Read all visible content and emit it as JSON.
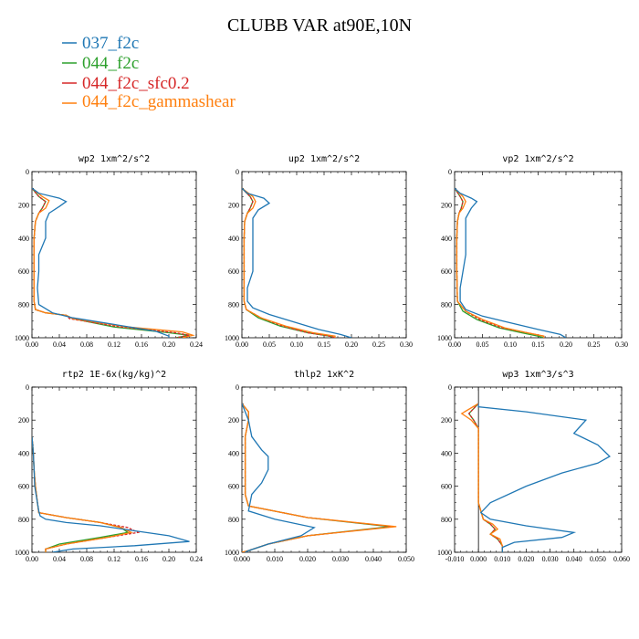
{
  "title": "CLUBB VAR at90E,10N",
  "colors": {
    "037_f2c": "#1f77b4",
    "044_f2c": "#2ca02c",
    "044_f2c_sfc0.2": "#d62728",
    "044_f2c_gammashear": "#ff7f0e"
  },
  "legend": [
    "037_f2c",
    "044_f2c",
    "044_f2c_sfc0.2",
    "044_f2c_gammashear"
  ],
  "chart_data": [
    {
      "type": "line",
      "title": "wp2  1xm^2/s^2",
      "xlim": [
        0,
        0.24
      ],
      "ylim": [
        1000,
        0
      ],
      "xticks": [
        "0.00",
        "0.04",
        "0.08",
        "0.12",
        "0.16",
        "0.20",
        "0.24"
      ],
      "yticks": [
        "0",
        "200",
        "400",
        "600",
        "800",
        "1000"
      ],
      "series": [
        {
          "name": "037_f2c",
          "x": [
            0.0,
            0.01,
            0.04,
            0.05,
            0.04,
            0.025,
            0.02,
            0.02,
            0.01,
            0.01,
            0.008,
            0.01,
            0.03,
            0.06,
            0.12,
            0.18,
            0.2,
            0.2
          ],
          "y": [
            100,
            130,
            160,
            180,
            210,
            250,
            300,
            400,
            500,
            600,
            700,
            800,
            850,
            880,
            920,
            960,
            990,
            1000
          ]
        },
        {
          "name": "044_f2c",
          "x": [
            0.0,
            0.01,
            0.02,
            0.015,
            0.01,
            0.005,
            0.003,
            0.003,
            0.003,
            0.005,
            0.02,
            0.05,
            0.06,
            0.12,
            0.2,
            0.23,
            0.21
          ],
          "y": [
            100,
            150,
            180,
            220,
            250,
            300,
            400,
            600,
            780,
            830,
            850,
            865,
            885,
            935,
            970,
            985,
            1000
          ]
        },
        {
          "name": "044_f2c_sfc0.2",
          "x": [
            0.0,
            0.01,
            0.02,
            0.015,
            0.01,
            0.005,
            0.003,
            0.003,
            0.003,
            0.005,
            0.02,
            0.05,
            0.055,
            0.13,
            0.21,
            0.23,
            0.21
          ],
          "y": [
            100,
            150,
            180,
            220,
            250,
            300,
            400,
            600,
            780,
            830,
            850,
            865,
            885,
            935,
            970,
            985,
            1000
          ]
        },
        {
          "name": "044_f2c_gammashear",
          "x": [
            0.0,
            0.015,
            0.025,
            0.02,
            0.01,
            0.005,
            0.003,
            0.003,
            0.003,
            0.005,
            0.02,
            0.05,
            0.06,
            0.14,
            0.22,
            0.235,
            0.22
          ],
          "y": [
            100,
            150,
            175,
            220,
            250,
            300,
            400,
            600,
            780,
            830,
            850,
            865,
            885,
            935,
            965,
            985,
            1000
          ]
        }
      ]
    },
    {
      "type": "line",
      "title": "up2  1xm^2/s^2",
      "xlim": [
        0,
        0.3
      ],
      "ylim": [
        1000,
        0
      ],
      "xticks": [
        "0.00",
        "0.05",
        "0.10",
        "0.15",
        "0.20",
        "0.25",
        "0.30"
      ],
      "yticks": [
        "0",
        "200",
        "400",
        "600",
        "800",
        "1000"
      ],
      "series": [
        {
          "name": "037_f2c",
          "x": [
            0.0,
            0.01,
            0.04,
            0.05,
            0.03,
            0.02,
            0.02,
            0.02,
            0.01,
            0.01,
            0.02,
            0.05,
            0.1,
            0.14,
            0.18,
            0.2
          ],
          "y": [
            100,
            130,
            160,
            190,
            230,
            280,
            400,
            600,
            700,
            780,
            820,
            860,
            910,
            950,
            980,
            1000
          ]
        },
        {
          "name": "044_f2c",
          "x": [
            0.0,
            0.015,
            0.02,
            0.015,
            0.01,
            0.005,
            0.004,
            0.004,
            0.004,
            0.008,
            0.03,
            0.07,
            0.12,
            0.16,
            0.17
          ],
          "y": [
            100,
            150,
            180,
            220,
            250,
            300,
            400,
            600,
            780,
            830,
            880,
            930,
            970,
            990,
            1000
          ]
        },
        {
          "name": "044_f2c_sfc0.2",
          "x": [
            0.0,
            0.015,
            0.02,
            0.015,
            0.01,
            0.005,
            0.004,
            0.004,
            0.004,
            0.008,
            0.035,
            0.075,
            0.12,
            0.16,
            0.17
          ],
          "y": [
            100,
            150,
            180,
            220,
            250,
            300,
            400,
            600,
            780,
            830,
            880,
            930,
            970,
            990,
            1000
          ]
        },
        {
          "name": "044_f2c_gammashear",
          "x": [
            0.0,
            0.02,
            0.025,
            0.02,
            0.01,
            0.005,
            0.004,
            0.004,
            0.004,
            0.008,
            0.035,
            0.08,
            0.13,
            0.17,
            0.17
          ],
          "y": [
            100,
            150,
            180,
            220,
            250,
            300,
            400,
            600,
            780,
            830,
            880,
            930,
            970,
            990,
            1000
          ]
        }
      ]
    },
    {
      "type": "line",
      "title": "vp2  1xm^2/s^2",
      "xlim": [
        0,
        0.3
      ],
      "ylim": [
        1000,
        0
      ],
      "xticks": [
        "0.00",
        "0.05",
        "0.10",
        "0.15",
        "0.20",
        "0.25",
        "0.30"
      ],
      "yticks": [
        "0",
        "200",
        "400",
        "600",
        "800",
        "1000"
      ],
      "series": [
        {
          "name": "037_f2c",
          "x": [
            0.0,
            0.01,
            0.03,
            0.04,
            0.03,
            0.02,
            0.02,
            0.01,
            0.01,
            0.02,
            0.05,
            0.1,
            0.15,
            0.19,
            0.2
          ],
          "y": [
            100,
            130,
            160,
            180,
            220,
            280,
            500,
            700,
            780,
            830,
            870,
            910,
            950,
            980,
            1000
          ]
        },
        {
          "name": "044_f2c",
          "x": [
            0.0,
            0.01,
            0.015,
            0.012,
            0.008,
            0.005,
            0.004,
            0.004,
            0.005,
            0.015,
            0.04,
            0.08,
            0.12,
            0.15,
            0.16
          ],
          "y": [
            100,
            150,
            180,
            220,
            250,
            300,
            400,
            600,
            780,
            840,
            890,
            940,
            970,
            990,
            1000
          ]
        },
        {
          "name": "044_f2c_sfc0.2",
          "x": [
            0.0,
            0.01,
            0.015,
            0.012,
            0.008,
            0.005,
            0.004,
            0.004,
            0.005,
            0.02,
            0.045,
            0.085,
            0.13,
            0.16,
            0.16
          ],
          "y": [
            100,
            150,
            180,
            220,
            250,
            300,
            400,
            600,
            780,
            840,
            890,
            940,
            970,
            990,
            1000
          ]
        },
        {
          "name": "044_f2c_gammashear",
          "x": [
            0.0,
            0.015,
            0.02,
            0.015,
            0.008,
            0.005,
            0.004,
            0.004,
            0.005,
            0.02,
            0.05,
            0.09,
            0.13,
            0.16,
            0.16
          ],
          "y": [
            100,
            150,
            180,
            220,
            250,
            300,
            400,
            600,
            780,
            840,
            890,
            940,
            970,
            990,
            1000
          ]
        }
      ]
    },
    {
      "type": "line",
      "title": "rtp2  1E-6x(kg/kg)^2",
      "xlim": [
        0,
        0.24
      ],
      "ylim": [
        1000,
        0
      ],
      "xticks": [
        "0.00",
        "0.04",
        "0.08",
        "0.12",
        "0.16",
        "0.20",
        "0.24"
      ],
      "yticks": [
        "0",
        "200",
        "400",
        "600",
        "800",
        "1000"
      ],
      "series": [
        {
          "name": "037_f2c",
          "x": [
            0.0,
            0.002,
            0.003,
            0.004,
            0.008,
            0.01,
            0.012,
            0.02,
            0.05,
            0.1,
            0.15,
            0.2,
            0.23,
            0.15,
            0.06,
            0.03
          ],
          "y": [
            300,
            400,
            500,
            600,
            700,
            750,
            780,
            800,
            820,
            840,
            870,
            900,
            935,
            960,
            980,
            1000
          ]
        },
        {
          "name": "044_f2c",
          "x": [
            0.0,
            0.002,
            0.003,
            0.005,
            0.008,
            0.01,
            0.05,
            0.1,
            0.13,
            0.14,
            0.1,
            0.04,
            0.02,
            0.02
          ],
          "y": [
            300,
            400,
            500,
            600,
            700,
            760,
            790,
            820,
            850,
            880,
            910,
            950,
            980,
            1000
          ]
        },
        {
          "name": "044_f2c_sfc0.2",
          "x": [
            0.0,
            0.002,
            0.003,
            0.005,
            0.008,
            0.01,
            0.05,
            0.1,
            0.14,
            0.155,
            0.11,
            0.05,
            0.02,
            0.02
          ],
          "y": [
            300,
            400,
            500,
            600,
            700,
            760,
            790,
            820,
            850,
            880,
            910,
            950,
            980,
            1000
          ]
        },
        {
          "name": "044_f2c_gammashear",
          "x": [
            0.0,
            0.002,
            0.003,
            0.005,
            0.008,
            0.01,
            0.05,
            0.1,
            0.13,
            0.145,
            0.11,
            0.05,
            0.02,
            0.02
          ],
          "y": [
            300,
            400,
            500,
            600,
            700,
            760,
            790,
            820,
            850,
            880,
            910,
            950,
            980,
            1000
          ]
        }
      ]
    },
    {
      "type": "line",
      "title": "thlp2  1xK^2",
      "xlim": [
        0,
        0.05
      ],
      "ylim": [
        1000,
        0
      ],
      "xticks": [
        "0.000",
        "0.010",
        "0.020",
        "0.030",
        "0.040",
        "0.050"
      ],
      "yticks": [
        "0",
        "200",
        "400",
        "600",
        "800",
        "1000"
      ],
      "series": [
        {
          "name": "037_f2c",
          "x": [
            0.0,
            0.002,
            0.003,
            0.006,
            0.008,
            0.008,
            0.006,
            0.003,
            0.002,
            0.01,
            0.022,
            0.018,
            0.008,
            0.002,
            0.001
          ],
          "y": [
            100,
            200,
            300,
            380,
            420,
            500,
            580,
            650,
            750,
            800,
            850,
            900,
            950,
            990,
            1000
          ]
        },
        {
          "name": "044_f2c",
          "x": [
            0.0,
            0.002,
            0.002,
            0.001,
            0.001,
            0.001,
            0.002,
            0.02,
            0.045,
            0.02,
            0.008,
            0.002,
            0.0
          ],
          "y": [
            100,
            150,
            200,
            300,
            500,
            650,
            720,
            790,
            845,
            900,
            950,
            990,
            1000
          ]
        },
        {
          "name": "044_f2c_sfc0.2",
          "x": [
            0.0,
            0.002,
            0.002,
            0.001,
            0.001,
            0.001,
            0.002,
            0.02,
            0.046,
            0.02,
            0.008,
            0.002,
            0.0
          ],
          "y": [
            100,
            150,
            200,
            300,
            500,
            650,
            720,
            790,
            845,
            900,
            950,
            990,
            1000
          ]
        },
        {
          "name": "044_f2c_gammashear",
          "x": [
            0.0,
            0.002,
            0.002,
            0.001,
            0.001,
            0.001,
            0.002,
            0.02,
            0.047,
            0.02,
            0.008,
            0.002,
            0.0
          ],
          "y": [
            100,
            150,
            200,
            300,
            500,
            650,
            720,
            790,
            845,
            900,
            950,
            990,
            1000
          ]
        }
      ]
    },
    {
      "type": "line",
      "title": "wp3  1xm^3/s^3",
      "xlim": [
        -0.01,
        0.06
      ],
      "ylim": [
        1000,
        0
      ],
      "xticks": [
        "-0.010",
        "0.000",
        "0.010",
        "0.020",
        "0.030",
        "0.040",
        "0.050",
        "0.060"
      ],
      "yticks": [
        "0",
        "200",
        "400",
        "600",
        "800",
        "1000"
      ],
      "series": [
        {
          "name": "037_f2c",
          "x": [
            0.0,
            0.0,
            0.02,
            0.045,
            0.04,
            0.05,
            0.055,
            0.05,
            0.035,
            0.02,
            0.005,
            0.001,
            0.005,
            0.02,
            0.04,
            0.035,
            0.015,
            0.01,
            0.01
          ],
          "y": [
            100,
            120,
            150,
            200,
            280,
            350,
            420,
            460,
            520,
            600,
            700,
            760,
            800,
            840,
            880,
            910,
            940,
            970,
            1000
          ]
        },
        {
          "name": "044_f2c",
          "x": [
            0.0,
            -0.004,
            -0.002,
            0.0,
            0.0,
            0.0,
            0.0,
            0.002,
            0.005,
            0.007,
            0.005,
            0.008,
            0.01,
            0.01
          ],
          "y": [
            100,
            160,
            200,
            250,
            300,
            500,
            700,
            800,
            830,
            860,
            890,
            920,
            960,
            1000
          ]
        },
        {
          "name": "044_f2c_sfc0.2",
          "x": [
            0.0,
            -0.004,
            -0.002,
            0.0,
            0.0,
            0.0,
            0.0,
            0.002,
            0.005,
            0.007,
            0.005,
            0.008,
            0.01,
            0.01
          ],
          "y": [
            100,
            160,
            200,
            250,
            300,
            500,
            700,
            800,
            830,
            860,
            890,
            920,
            960,
            1000
          ]
        },
        {
          "name": "044_f2c_gammashear",
          "x": [
            0.0,
            -0.007,
            -0.003,
            0.0,
            0.0,
            0.0,
            0.0,
            0.002,
            0.006,
            0.008,
            0.005,
            0.009,
            0.01,
            0.01
          ],
          "y": [
            100,
            160,
            200,
            250,
            300,
            500,
            700,
            800,
            830,
            860,
            890,
            920,
            960,
            1000
          ]
        }
      ]
    }
  ]
}
